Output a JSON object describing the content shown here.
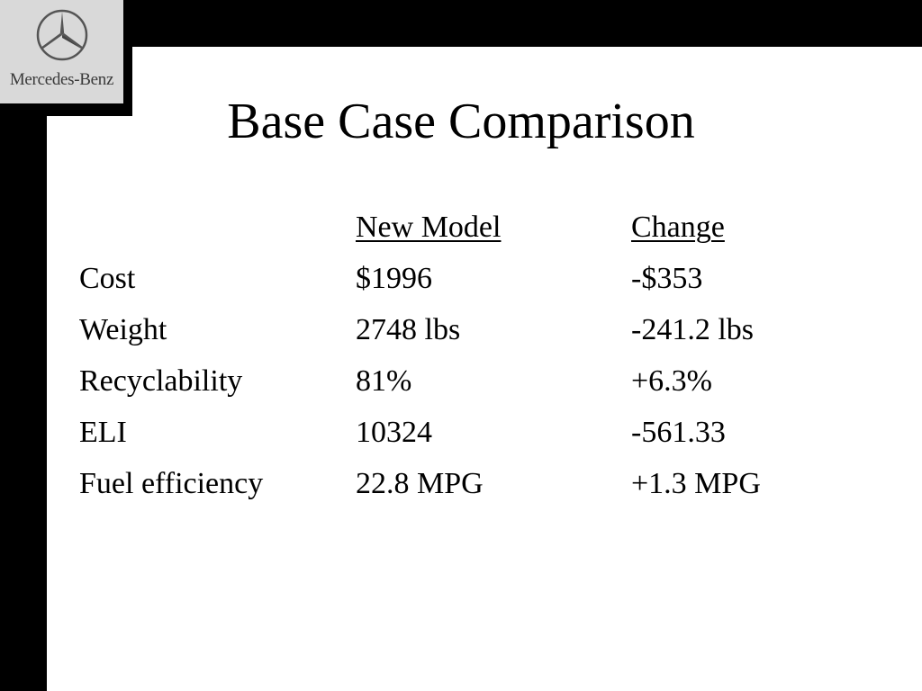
{
  "brand": {
    "logo_text": "Mercedes-Benz",
    "icon": "three-pointed-star-icon"
  },
  "title": "Base Case Comparison",
  "table": {
    "headers": [
      "",
      "New Model",
      "Change"
    ],
    "rows": [
      [
        "Cost",
        "$1996",
        "-$353"
      ],
      [
        "Weight",
        "2748 lbs",
        "-241.2 lbs"
      ],
      [
        "Recyclability",
        "81%",
        "+6.3%"
      ],
      [
        "ELI",
        "10324",
        "-561.33"
      ],
      [
        "Fuel efficiency",
        "22.8 MPG",
        "+1.3 MPG"
      ]
    ]
  },
  "colors": {
    "frame": "#000000",
    "background": "#ffffff",
    "logo_box": "#d9d9d9"
  }
}
